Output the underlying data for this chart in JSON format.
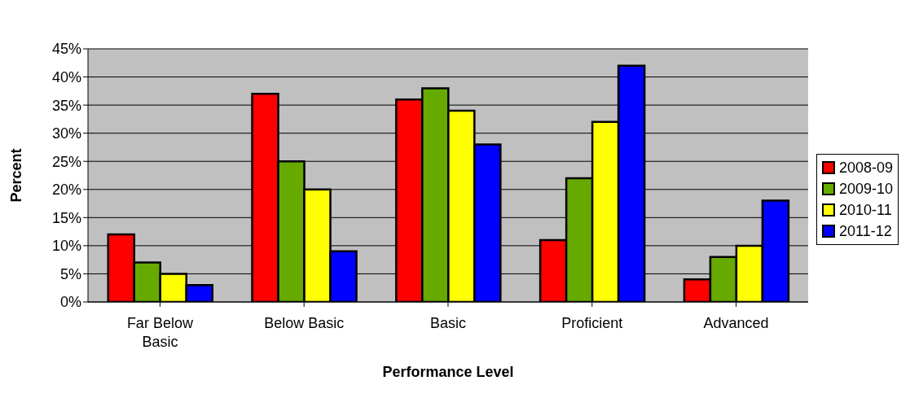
{
  "chart_data": {
    "type": "bar",
    "xlabel": "Performance Level",
    "ylabel": "Percent",
    "categories": [
      "Far Below Basic",
      "Below Basic",
      "Basic",
      "Proficient",
      "Advanced"
    ],
    "series": [
      {
        "name": "2008-09",
        "color": "#ff0000",
        "values": [
          12,
          37,
          36,
          11,
          4
        ]
      },
      {
        "name": "2009-10",
        "color": "#66aa00",
        "values": [
          7,
          25,
          38,
          22,
          8
        ]
      },
      {
        "name": "2010-11",
        "color": "#ffff00",
        "values": [
          5,
          20,
          34,
          32,
          10
        ]
      },
      {
        "name": "2011-12",
        "color": "#0000ff",
        "values": [
          3,
          9,
          28,
          42,
          18
        ]
      }
    ],
    "ylim": [
      0,
      45
    ],
    "yticks": [
      {
        "value": 0,
        "label": "0%"
      },
      {
        "value": 5,
        "label": "5%"
      },
      {
        "value": 10,
        "label": "10%"
      },
      {
        "value": 15,
        "label": "15%"
      },
      {
        "value": 20,
        "label": "20%"
      },
      {
        "value": 25,
        "label": "25%"
      },
      {
        "value": 30,
        "label": "30%"
      },
      {
        "value": 35,
        "label": "35%"
      },
      {
        "value": 40,
        "label": "40%"
      },
      {
        "value": 45,
        "label": "45%"
      }
    ],
    "grid": "y",
    "legend": "right"
  }
}
